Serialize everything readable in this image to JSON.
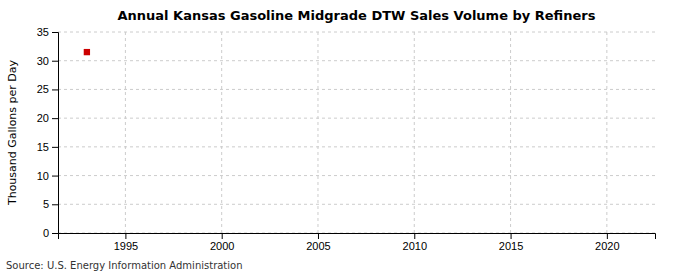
{
  "chart_data": {
    "type": "scatter",
    "title": "Annual Kansas Gasoline Midgrade DTW Sales Volume by Refiners",
    "ylabel": "Thousand Gallons per Day",
    "annotations": [
      "Source: U.S. Energy Information Administration"
    ],
    "x": [
      1993
    ],
    "values": [
      31.5
    ],
    "color": "#cc0000",
    "marker": "square",
    "xlim": [
      1991.5,
      2022.5
    ],
    "ylim": [
      0,
      35
    ],
    "xticks": [
      1995,
      2000,
      2005,
      2010,
      2015,
      2020
    ],
    "yticks": [
      0,
      5,
      10,
      15,
      20,
      25,
      30,
      35
    ],
    "grid": true
  }
}
